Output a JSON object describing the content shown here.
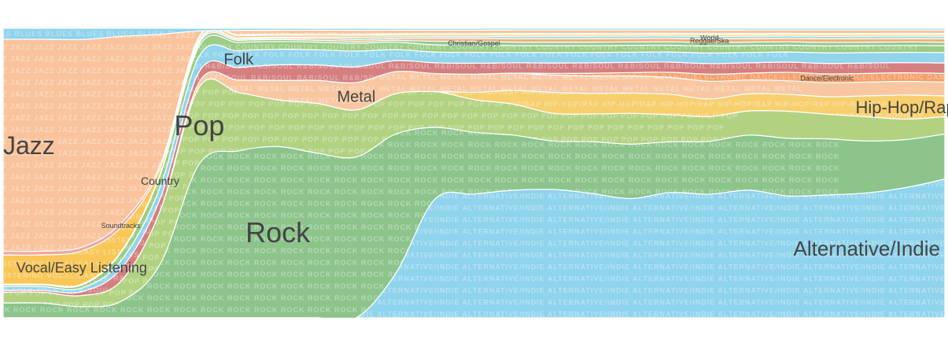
{
  "chart_data": {
    "type": "area",
    "layout": "streamgraph",
    "title": "",
    "xlabel": "",
    "ylabel": "",
    "x_points": 25,
    "series": [
      {
        "name": "Alternative/Indie",
        "label": "Alternative/Indie",
        "pattern": "ALTERNATIVE/INDIE",
        "color": "#8fd3ec",
        "label_size": 26,
        "values": [
          0,
          0,
          0,
          0,
          0,
          0,
          0,
          0,
          0,
          0,
          12,
          33,
          34,
          37,
          37,
          36,
          35,
          37,
          35,
          37,
          36,
          35,
          36,
          38,
          40
        ]
      },
      {
        "name": "Rock",
        "label": "Rock",
        "pattern": "ROCK",
        "color": "#8cc48c",
        "label_size": 36,
        "values": [
          4,
          4,
          3,
          4,
          9,
          30,
          40,
          44,
          43,
          41,
          38,
          20,
          17,
          16,
          14,
          15,
          16,
          15,
          15,
          16,
          17,
          16,
          15,
          14,
          13
        ]
      },
      {
        "name": "Pop",
        "label": "Pop",
        "pattern": "POP",
        "color": "#b2d282",
        "label_size": 36,
        "values": [
          3,
          3,
          3,
          5,
          9,
          15,
          14,
          12,
          13,
          12,
          11,
          10,
          9,
          9,
          8,
          8,
          9,
          8,
          7,
          7,
          8,
          7,
          7,
          6,
          5
        ]
      },
      {
        "name": "Hip-Hop/Rap",
        "label": "Hip-Hop/Rap",
        "pattern": "HIP-HOP/RAP",
        "color": "#f7cf6e",
        "label_size": 22,
        "values": [
          0,
          0,
          0,
          0,
          0,
          0,
          0,
          0,
          0,
          0,
          0,
          0,
          2,
          4,
          6,
          6,
          6,
          6,
          5,
          5,
          5,
          5,
          6,
          7,
          6
        ]
      },
      {
        "name": "Metal",
        "label": "Metal",
        "pattern": "METAL",
        "color": "#f8c7a2",
        "label_size": 20,
        "values": [
          0,
          0,
          0,
          0,
          0,
          1,
          3,
          5,
          6,
          7,
          6,
          5,
          5,
          5,
          5,
          5,
          5,
          5,
          5,
          4,
          4,
          4,
          4,
          4,
          4
        ]
      },
      {
        "name": "Dance/Electronic",
        "label": "Dance/Electronic",
        "pattern": "DANCE/ELECTRONIC",
        "color": "#f5a06a",
        "label_size": 9,
        "values": [
          0,
          0,
          0,
          0,
          0,
          0,
          0,
          0,
          0,
          0,
          0,
          0,
          0,
          0,
          0.5,
          0.8,
          1,
          1.5,
          2,
          2,
          2.5,
          2.5,
          2.5,
          2.5,
          2.5
        ]
      },
      {
        "name": "R&B/Soul",
        "label": "",
        "pattern": "R&B/SOUL",
        "color": "#d57f80",
        "label_size": 0,
        "values": [
          0.5,
          0.5,
          1,
          3,
          2,
          2,
          3,
          4,
          4,
          4,
          3,
          3,
          3,
          3,
          3,
          3,
          3,
          3,
          3,
          3,
          3,
          3,
          3,
          3,
          3
        ]
      },
      {
        "name": "Folk",
        "label": "Folk",
        "pattern": "FOLK",
        "color": "#91d4ec",
        "label_size": 20,
        "values": [
          1,
          1,
          1,
          2,
          2,
          3,
          4,
          4,
          4,
          4,
          3,
          3,
          3,
          3,
          3,
          3,
          3,
          3,
          3,
          3,
          3,
          3,
          3,
          3,
          3
        ]
      },
      {
        "name": "Country",
        "label": "Country",
        "pattern": "COUNTRY",
        "color": "#9ccc86",
        "label_size": 14,
        "values": [
          0.5,
          0.5,
          0.8,
          2,
          2,
          2,
          2,
          2,
          2,
          2,
          2,
          2,
          2,
          2,
          2,
          2,
          2,
          2,
          2,
          2,
          2,
          2,
          2,
          2,
          2
        ]
      },
      {
        "name": "Christian/Gospel",
        "label": "Christian/Gospel",
        "pattern": "",
        "color": "#94c98e",
        "label_size": 9,
        "values": [
          0,
          0,
          0,
          0,
          0,
          0.5,
          0.5,
          0.5,
          0.5,
          0.5,
          0.5,
          1,
          1,
          1,
          1,
          1,
          1,
          1,
          1,
          1,
          1,
          1,
          1,
          1,
          1
        ]
      },
      {
        "name": "Reggae/Ska",
        "label": "Reggae/Ska",
        "pattern": "",
        "color": "#f2ad7c",
        "label_size": 9,
        "values": [
          0,
          0,
          0,
          0,
          0,
          0.3,
          0.3,
          0.3,
          0.5,
          0.5,
          0.5,
          0.8,
          0.8,
          1,
          1,
          1,
          1,
          1,
          1,
          1,
          1,
          1,
          1,
          1,
          1
        ]
      },
      {
        "name": "World",
        "label": "World",
        "pattern": "",
        "color": "#9ad7d0",
        "label_size": 9,
        "values": [
          0.2,
          0.2,
          0.2,
          0.2,
          0.2,
          0.3,
          0.3,
          0.3,
          0.3,
          0.5,
          0.5,
          0.5,
          0.5,
          0.7,
          0.7,
          0.7,
          0.7,
          0.7,
          0.7,
          0.7,
          0.7,
          0.7,
          0.7,
          0.7,
          0.7
        ]
      },
      {
        "name": "Vocal/Easy Listening",
        "label": "Vocal/Easy Listening",
        "pattern": "VOCAL/EASY LISTENING",
        "color": "#f8c758",
        "label_size": 18,
        "values": [
          8,
          8,
          9,
          6,
          1,
          0.5,
          0.5,
          0.5,
          0.5,
          0.5,
          0.5,
          0.5,
          0.5,
          0.5,
          0.5,
          0.5,
          0.5,
          0.5,
          0.5,
          0.5,
          0.5,
          0.5,
          0.5,
          0.5,
          0.5
        ]
      },
      {
        "name": "Soundtracks",
        "label": "Soundtracks",
        "pattern": "",
        "color": "#f0a6a0",
        "label_size": 9,
        "values": [
          1,
          1,
          1,
          1,
          0.5,
          0.3,
          0.3,
          0.3,
          0.3,
          0.3,
          0.3,
          0.3,
          0.3,
          0.3,
          0.3,
          0.3,
          0.3,
          0.3,
          0.3,
          0.3,
          0.3,
          0.3,
          0.3,
          0.3,
          0.3
        ]
      },
      {
        "name": "Jazz",
        "label": "Jazz",
        "pattern": "JAZZ",
        "color": "#f9c49d",
        "label_size": 32,
        "values": [
          58,
          58,
          56,
          46,
          22,
          1,
          1,
          1,
          1,
          1,
          1,
          1,
          1,
          1,
          1,
          1,
          1,
          1,
          1,
          1,
          1,
          1,
          1,
          1,
          1
        ]
      },
      {
        "name": "Blues",
        "label": "",
        "pattern": "BLUES",
        "color": "#8fd3ec",
        "label_size": 0,
        "values": [
          3,
          3,
          3,
          2,
          1,
          0.5,
          0.5,
          0.5,
          0.5,
          0.5,
          0.5,
          0.5,
          0.5,
          0.5,
          0.5,
          0.5,
          0.5,
          0.5,
          0.5,
          0.5,
          0.5,
          0.5,
          0.5,
          0.5,
          0.5
        ]
      }
    ]
  }
}
